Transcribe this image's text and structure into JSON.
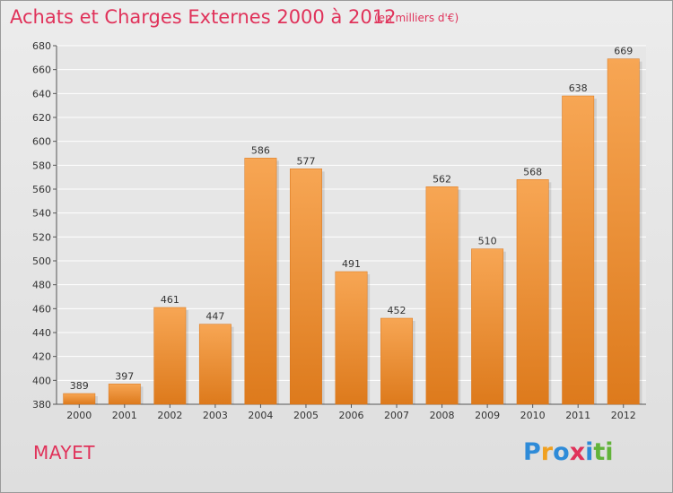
{
  "chart_data": {
    "type": "bar",
    "title": "Achats et Charges Externes 2000 à 2012",
    "subtitle": "(en milliers d'€)",
    "categories": [
      "2000",
      "2001",
      "2002",
      "2003",
      "2004",
      "2005",
      "2006",
      "2007",
      "2008",
      "2009",
      "2010",
      "2011",
      "2012"
    ],
    "values": [
      389,
      397,
      461,
      447,
      586,
      577,
      491,
      452,
      562,
      510,
      568,
      638,
      669
    ],
    "ylim": [
      380,
      680
    ],
    "yticks": [
      380,
      400,
      420,
      440,
      460,
      480,
      500,
      520,
      540,
      560,
      580,
      600,
      620,
      640,
      660,
      680
    ],
    "grid": true,
    "bar_color": "#f0902e"
  },
  "commune": "MAYET",
  "logo": {
    "letters": [
      "P",
      "r",
      "o",
      "x",
      "i",
      "t",
      "i"
    ],
    "colors": [
      "#2e8bd8",
      "#f0a020",
      "#2e8bd8",
      "#e0325a",
      "#2e8bd8",
      "#62b33a",
      "#62b33a"
    ]
  }
}
